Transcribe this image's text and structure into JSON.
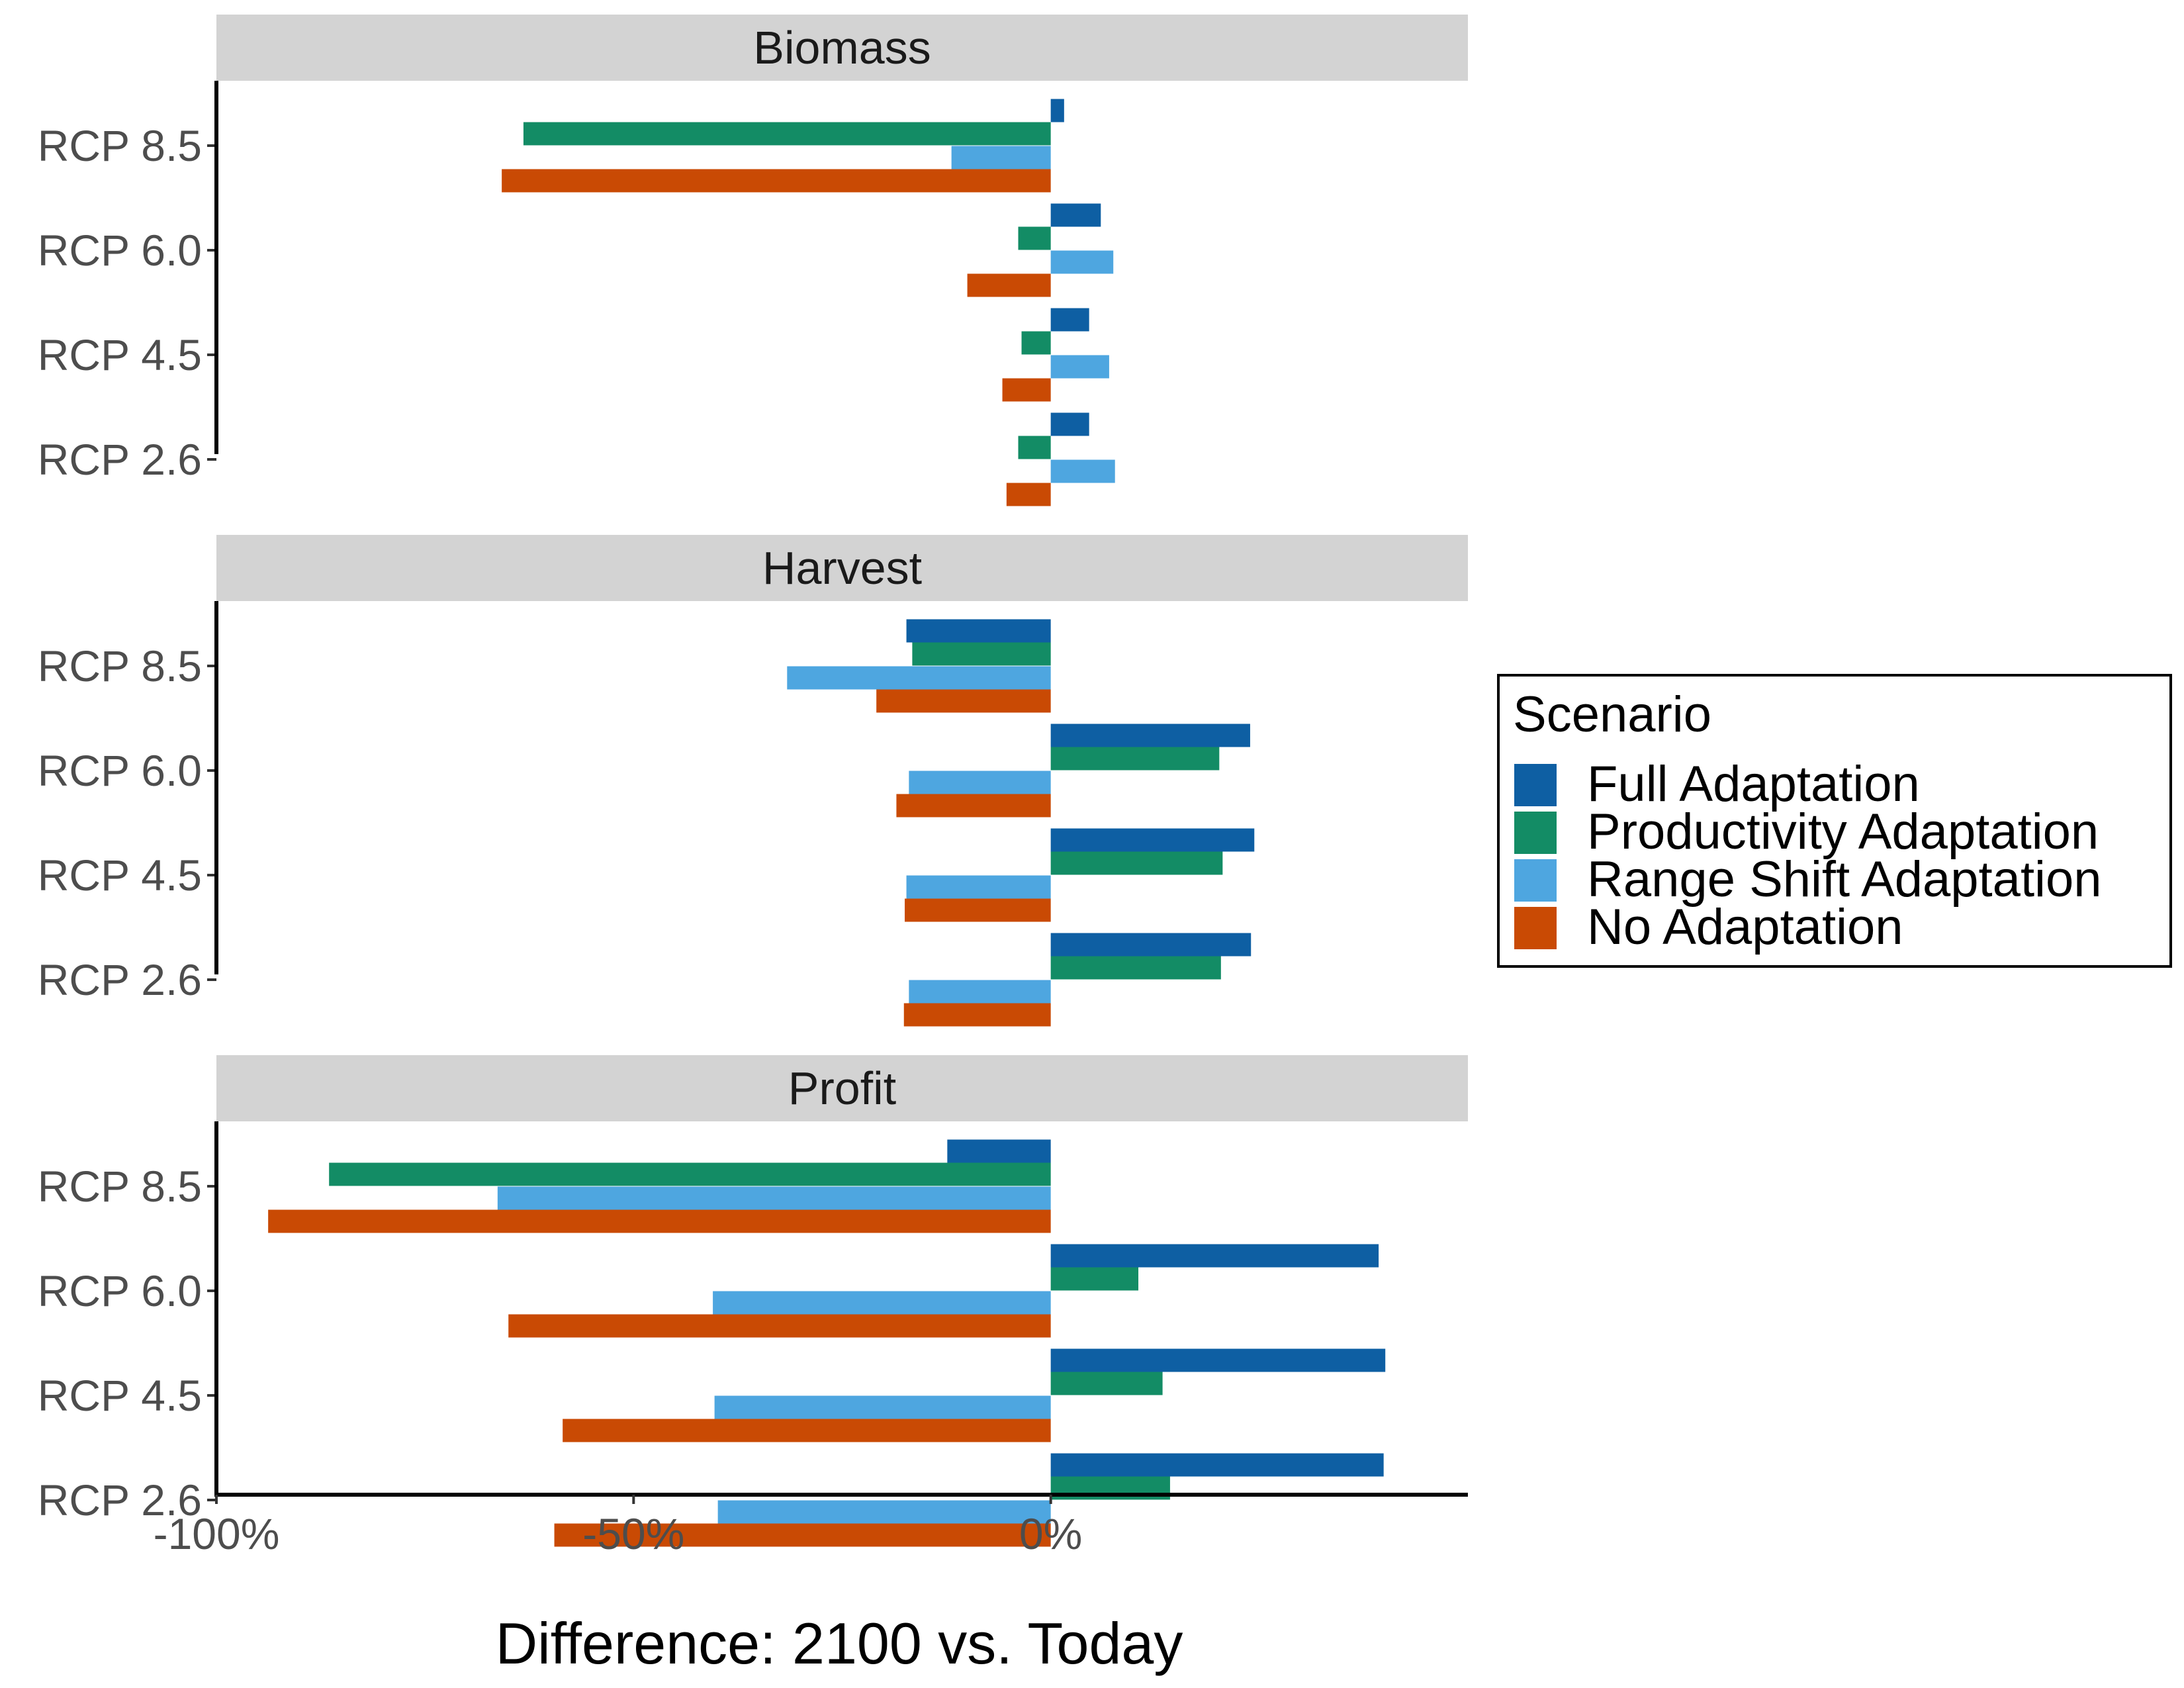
{
  "chart_data": {
    "type": "bar",
    "orientation": "horizontal",
    "facets": [
      "Biomass",
      "Harvest",
      "Profit"
    ],
    "categories": [
      "RCP 8.5",
      "RCP 6.0",
      "RCP 4.5",
      "RCP 2.6"
    ],
    "xlabel": "Difference: 2100 vs. Today",
    "x_ticks": [
      -100,
      -50,
      0
    ],
    "x_tick_labels": [
      "-100%",
      "-50%",
      "0%"
    ],
    "xlim": [
      -100,
      50
    ],
    "grid": false,
    "legend": {
      "title": "Scenario",
      "position": "right",
      "entries": [
        "Full Adaptation",
        "Productivity Adaptation",
        "Range Shift Adaptation",
        "No Adaptation"
      ]
    },
    "colors": {
      "Full Adaptation": "#0e5fa3",
      "Productivity Adaptation": "#138c65",
      "Range Shift Adaptation": "#4ea6e0",
      "No Adaptation": "#c94a04"
    },
    "panels": [
      {
        "facet": "Biomass",
        "series": [
          {
            "name": "Full Adaptation",
            "values": [
              1.6,
              6.0,
              4.6,
              4.6
            ]
          },
          {
            "name": "Productivity Adaptation",
            "values": [
              -63.2,
              -3.9,
              -3.5,
              -3.9
            ]
          },
          {
            "name": "Range Shift Adaptation",
            "values": [
              -11.9,
              7.5,
              7.0,
              7.7
            ]
          },
          {
            "name": "No Adaptation",
            "values": [
              -65.8,
              -10.0,
              -5.8,
              -5.3
            ]
          }
        ]
      },
      {
        "facet": "Harvest",
        "series": [
          {
            "name": "Full Adaptation",
            "values": [
              -17.3,
              23.9,
              24.4,
              24.0
            ]
          },
          {
            "name": "Productivity Adaptation",
            "values": [
              -16.6,
              20.2,
              20.6,
              20.4
            ]
          },
          {
            "name": "Range Shift Adaptation",
            "values": [
              -31.6,
              -17.0,
              -17.3,
              -17.0
            ]
          },
          {
            "name": "No Adaptation",
            "values": [
              -20.9,
              -18.5,
              -17.5,
              -17.6
            ]
          }
        ]
      },
      {
        "facet": "Profit",
        "series": [
          {
            "name": "Full Adaptation",
            "values": [
              -12.4,
              39.3,
              40.1,
              39.9
            ]
          },
          {
            "name": "Productivity Adaptation",
            "values": [
              -86.5,
              10.5,
              13.4,
              14.3
            ]
          },
          {
            "name": "Range Shift Adaptation",
            "values": [
              -66.3,
              -40.5,
              -40.3,
              -39.9
            ]
          },
          {
            "name": "No Adaptation",
            "values": [
              -93.8,
              -65.0,
              -58.5,
              -59.5
            ]
          }
        ]
      }
    ]
  }
}
